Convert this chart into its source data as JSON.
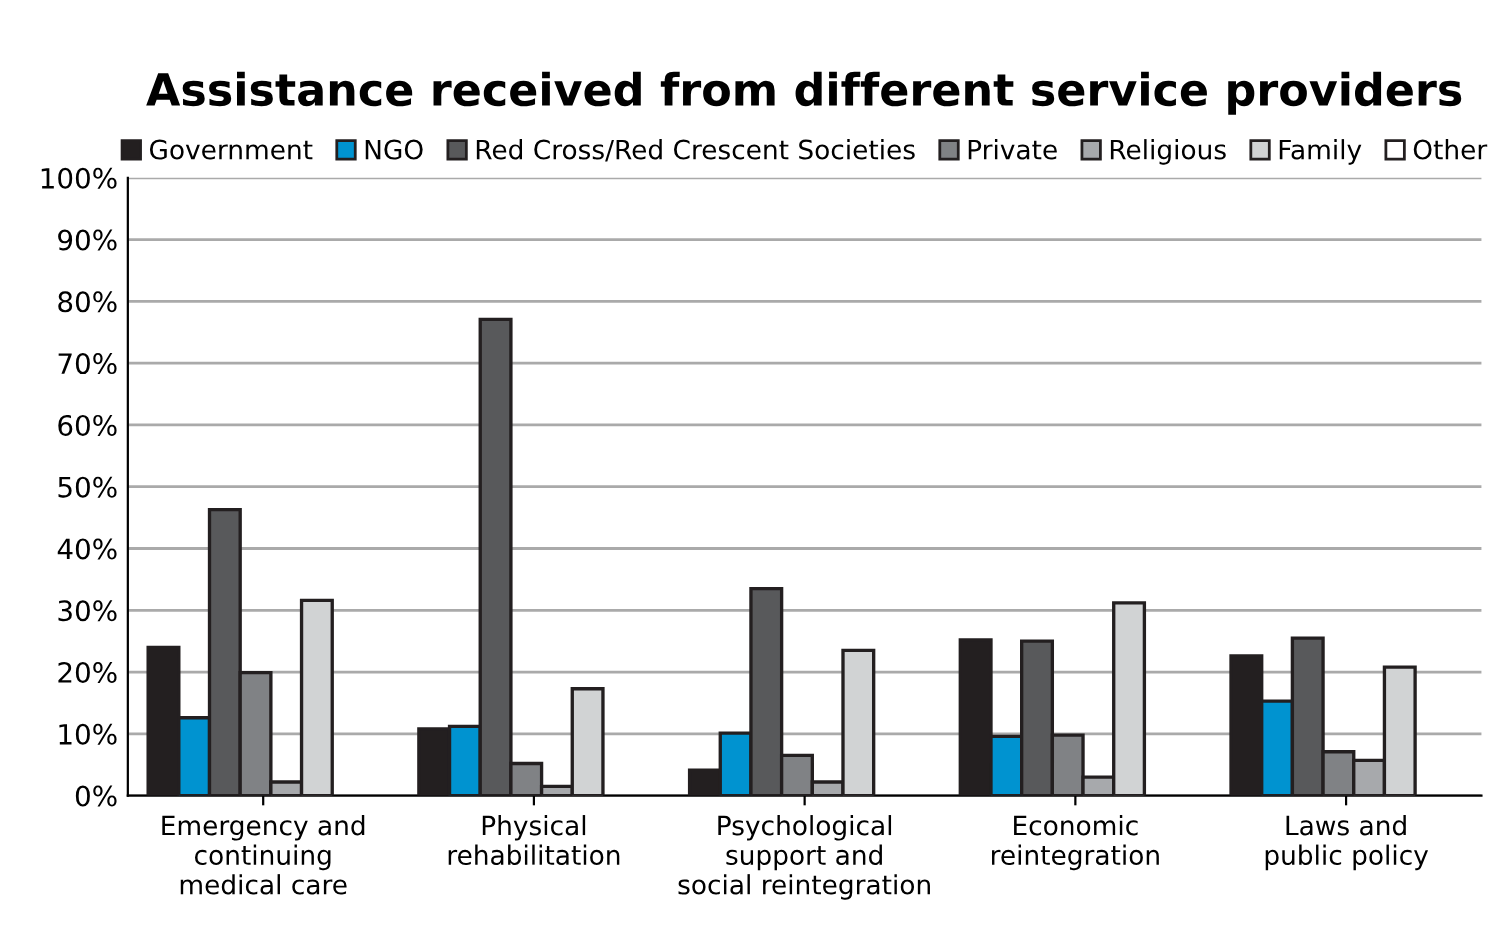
{
  "chart_data": {
    "type": "bar",
    "title": "Assistance received from different service providers",
    "categories": [
      "Emergency and\ncontinuing\nmedical care",
      "Physical\nrehabilitation",
      "Psychological\nsupport and\nsocial reintegration",
      "Economic\nreintegration",
      "Laws and\npublic policy"
    ],
    "series": [
      {
        "name": "Government",
        "color": "#231f20",
        "values": [
          24.0,
          10.8,
          4.1,
          25.2,
          22.6
        ]
      },
      {
        "name": "NGO",
        "color": "#0093d0",
        "values": [
          12.6,
          11.2,
          10.1,
          9.6,
          15.3
        ]
      },
      {
        "name": "Red Cross/Red Crescent Societies",
        "color": "#58595b",
        "values": [
          46.3,
          77.1,
          33.5,
          25.0,
          25.5
        ]
      },
      {
        "name": "Private",
        "color": "#808285",
        "values": [
          19.9,
          5.2,
          6.5,
          9.8,
          7.1
        ]
      },
      {
        "name": "Religious",
        "color": "#a7a9ac",
        "values": [
          2.2,
          1.5,
          2.2,
          3.0,
          5.7
        ]
      },
      {
        "name": "Family",
        "color": "#d1d3d4",
        "values": [
          31.6,
          17.3,
          23.5,
          31.2,
          20.8
        ]
      },
      {
        "name": "Other",
        "color": "#ffffff",
        "values": [
          null,
          null,
          null,
          null,
          null
        ]
      }
    ],
    "ylim": [
      0,
      100
    ],
    "yticks": [
      {
        "value": 0,
        "label": "0%"
      },
      {
        "value": 10,
        "label": "10%"
      },
      {
        "value": 20,
        "label": "20%"
      },
      {
        "value": 30,
        "label": "30%"
      },
      {
        "value": 40,
        "label": "40%"
      },
      {
        "value": 50,
        "label": "50%"
      },
      {
        "value": 60,
        "label": "60%"
      },
      {
        "value": 70,
        "label": "70%"
      },
      {
        "value": 80,
        "label": "80%"
      },
      {
        "value": 90,
        "label": "90%"
      },
      {
        "value": 100,
        "label": "100%"
      }
    ],
    "grid": "y",
    "legend": "top"
  }
}
